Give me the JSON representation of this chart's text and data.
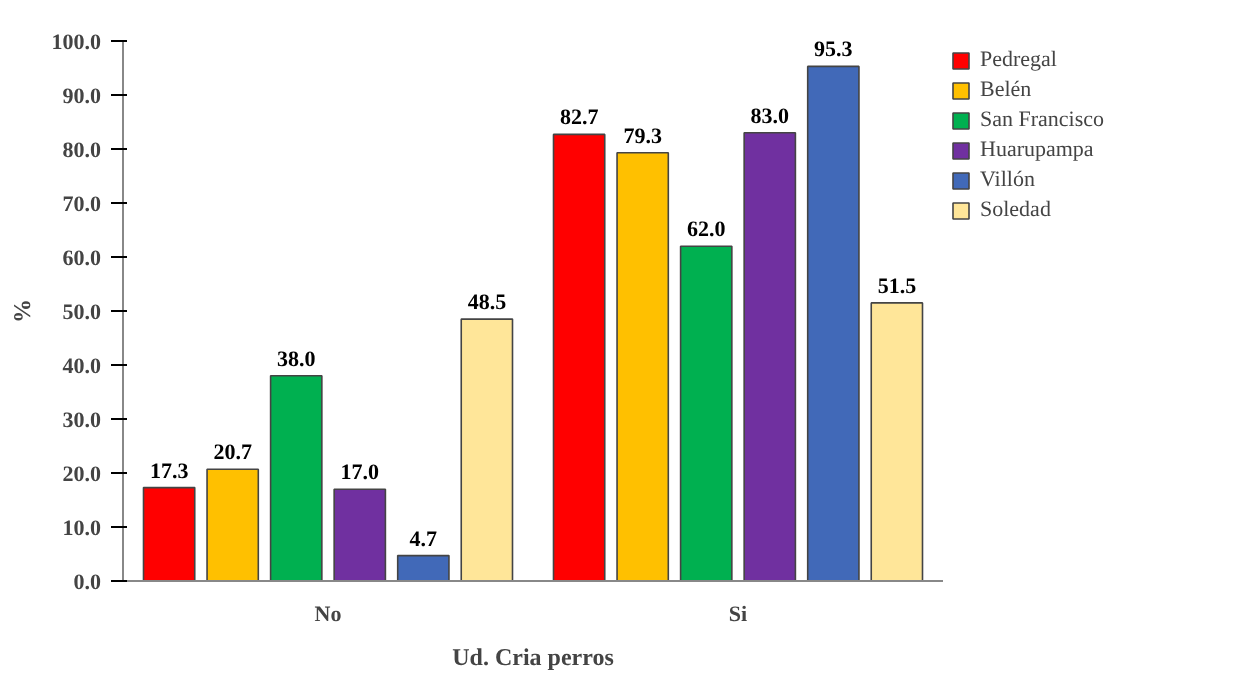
{
  "chart_data": {
    "type": "bar",
    "xlabel": "Ud. Cria perros",
    "ylabel": "%",
    "categories": [
      "No",
      "Si"
    ],
    "series": [
      {
        "name": "Pedregal",
        "color": "#ff0000",
        "values": [
          17.3,
          82.7
        ],
        "value_labels": [
          "17.3",
          "82.7"
        ]
      },
      {
        "name": "Belén",
        "color": "#ffc000",
        "values": [
          20.7,
          79.3
        ],
        "value_labels": [
          "20.7",
          "79.3"
        ]
      },
      {
        "name": "San Francisco",
        "color": "#00b050",
        "values": [
          38.0,
          62.0
        ],
        "value_labels": [
          "38.0",
          "62.0"
        ]
      },
      {
        "name": "Huarupampa",
        "color": "#7030a0",
        "values": [
          17.0,
          83.0
        ],
        "value_labels": [
          "17.0",
          "83.0"
        ]
      },
      {
        "name": "Villón",
        "color": "#4169b8",
        "values": [
          4.7,
          95.3
        ],
        "value_labels": [
          "4.7",
          "95.3"
        ]
      },
      {
        "name": "Soledad",
        "color": "#ffe699",
        "values": [
          48.5,
          51.5
        ],
        "value_labels": [
          "48.5",
          "51.5"
        ]
      }
    ],
    "ylim": [
      0,
      100
    ],
    "yticks": [
      {
        "value": 0,
        "label": "0.0"
      },
      {
        "value": 10,
        "label": "10.0"
      },
      {
        "value": 20,
        "label": "20.0"
      },
      {
        "value": 30,
        "label": "30.0"
      },
      {
        "value": 40,
        "label": "40.0"
      },
      {
        "value": 50,
        "label": "50.0"
      },
      {
        "value": 60,
        "label": "60.0"
      },
      {
        "value": 70,
        "label": "70.0"
      },
      {
        "value": 80,
        "label": "80.0"
      },
      {
        "value": 90,
        "label": "90.0"
      },
      {
        "value": 100,
        "label": "100.0"
      }
    ],
    "legend": "right"
  }
}
